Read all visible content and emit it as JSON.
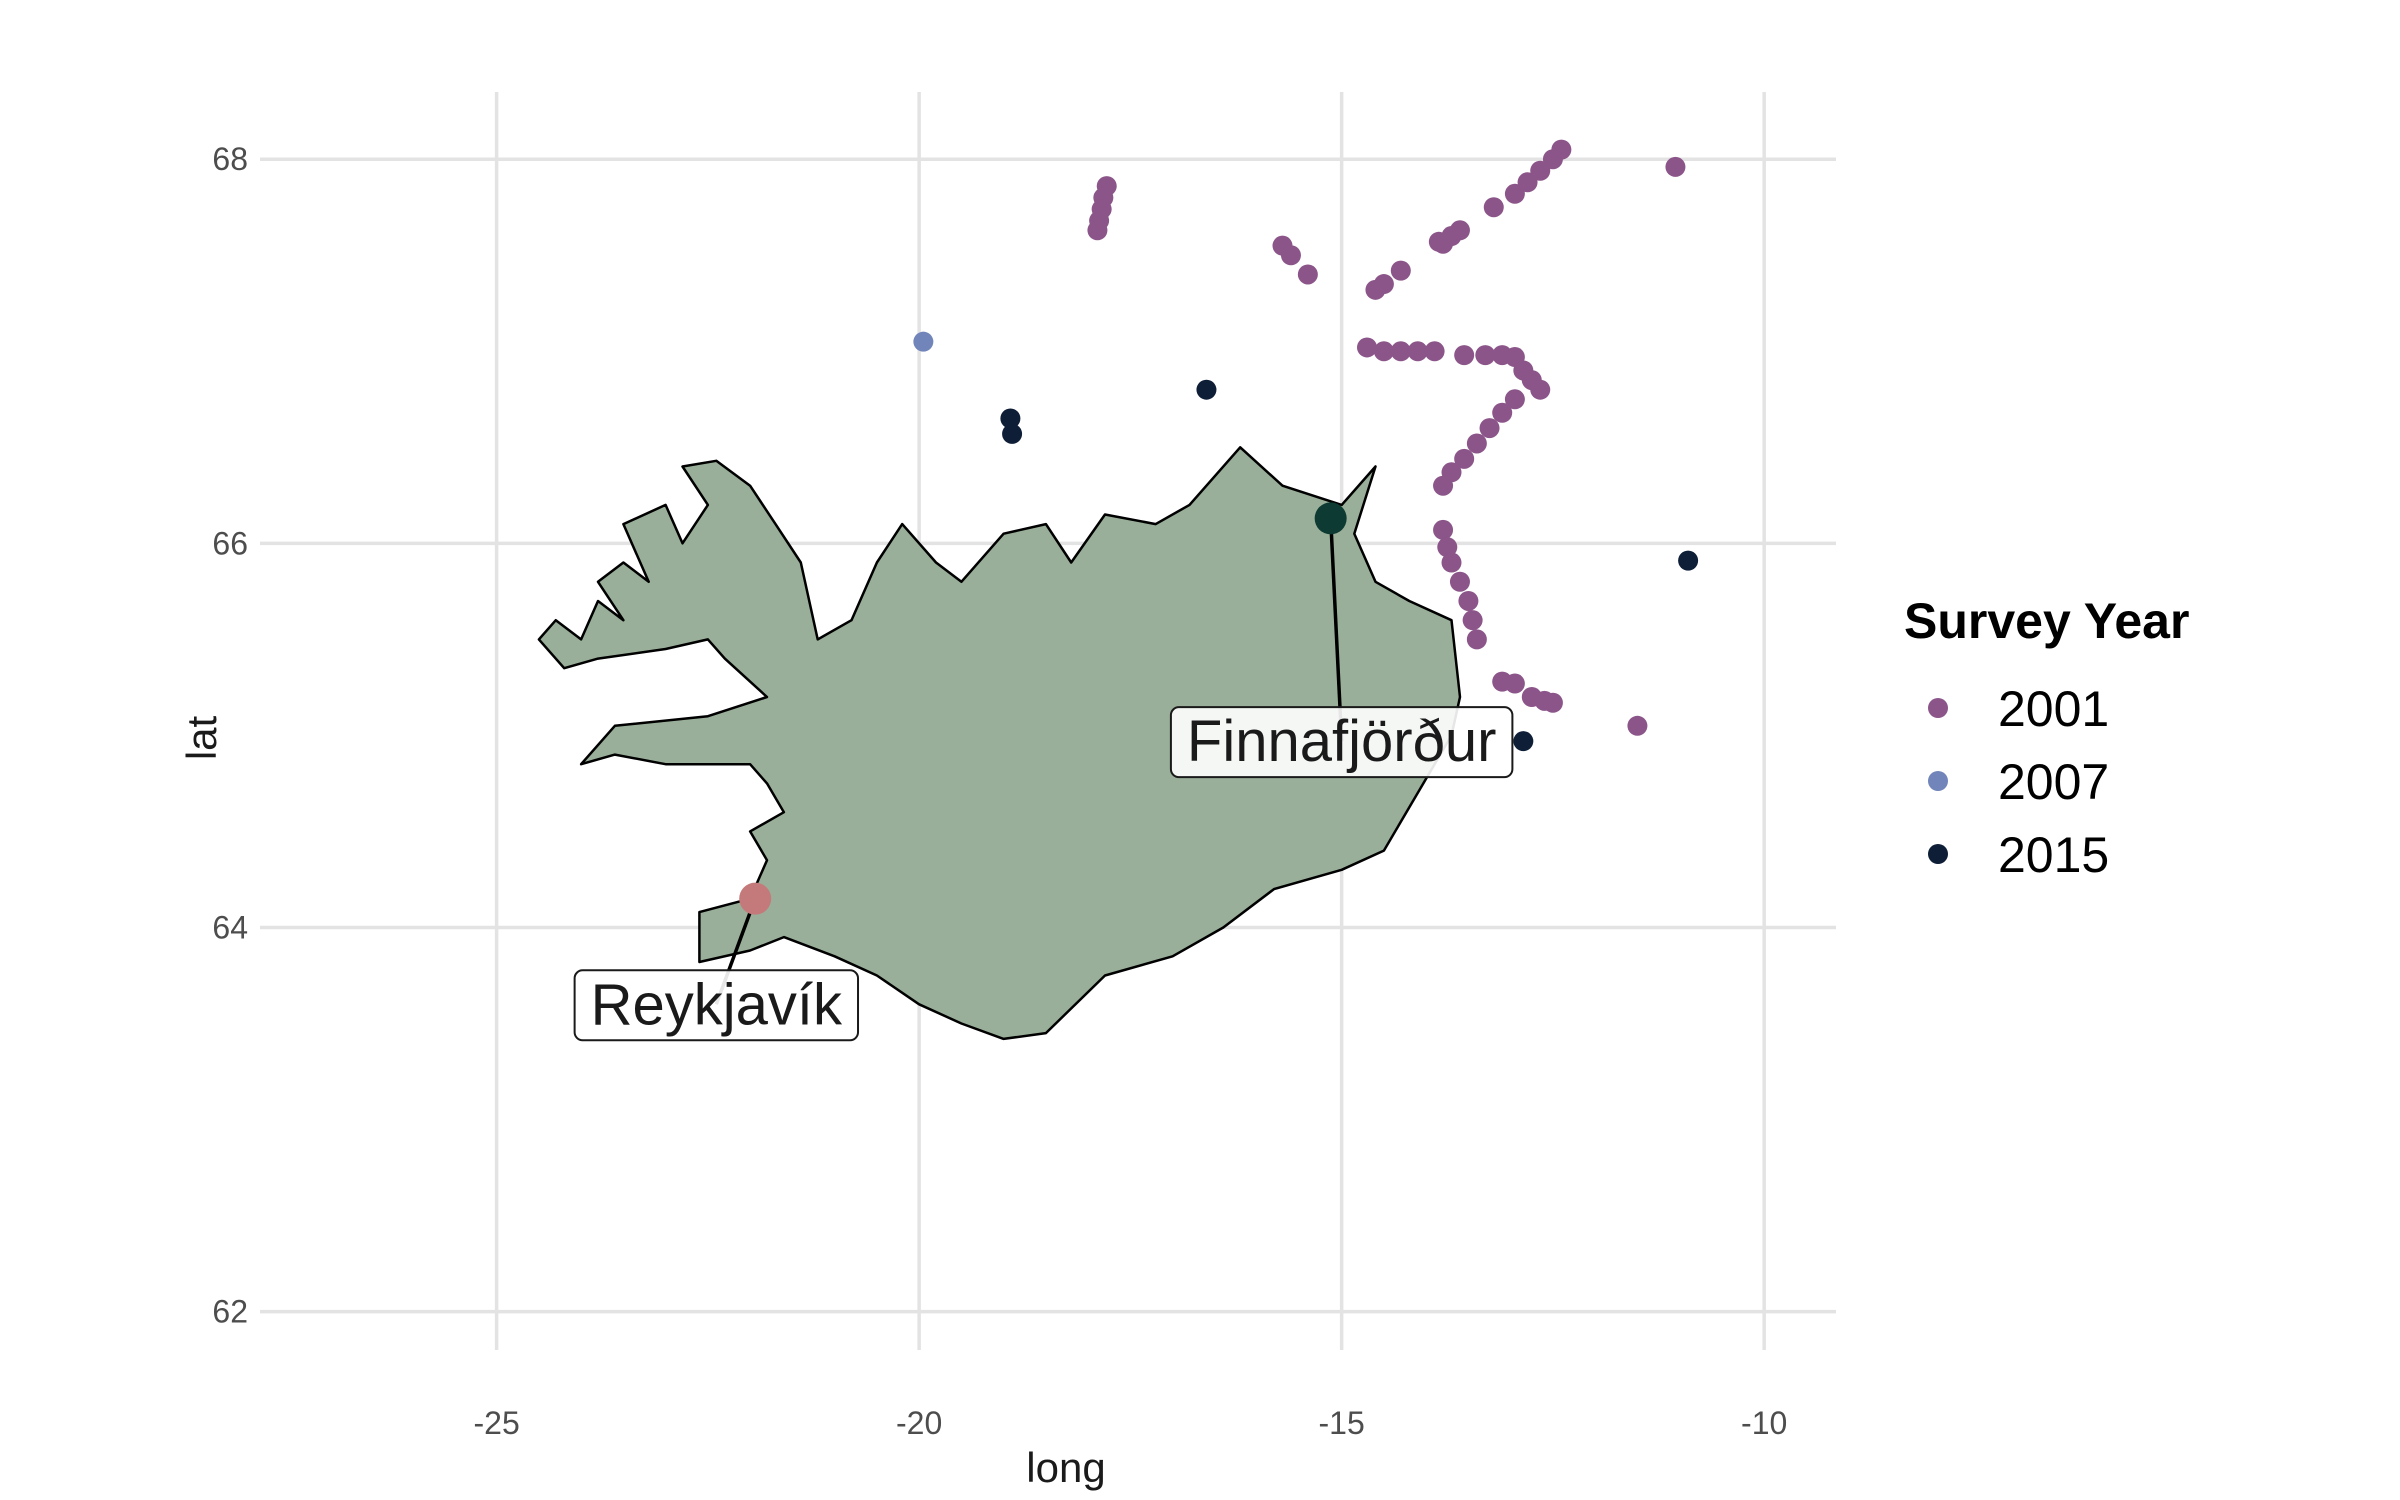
{
  "chart_data": {
    "type": "scatter",
    "title": "",
    "xlabel": "long",
    "ylabel": "lat",
    "xlim": [
      -27.8,
      -9.15
    ],
    "ylim": [
      61.8,
      68.35
    ],
    "x_ticks": [
      -25,
      -20,
      -15,
      -10
    ],
    "y_ticks": [
      62,
      64,
      66,
      68
    ],
    "x_tick_labels": [
      "-25",
      "-20",
      "-15",
      "-10"
    ],
    "y_tick_labels": [
      "62",
      "64",
      "66",
      "68"
    ],
    "grid": true,
    "legend": {
      "title": "Survey Year",
      "placement": "right",
      "entries": [
        "2001",
        "2007",
        "2015"
      ]
    },
    "land": {
      "name": "Iceland",
      "fill": "#99af99",
      "stroke": "#000000",
      "outline_lonlat": [
        [
          -24.5,
          65.5
        ],
        [
          -24.3,
          65.6
        ],
        [
          -24.0,
          65.5
        ],
        [
          -23.8,
          65.7
        ],
        [
          -23.5,
          65.6
        ],
        [
          -23.8,
          65.8
        ],
        [
          -23.5,
          65.9
        ],
        [
          -23.2,
          65.8
        ],
        [
          -23.5,
          66.1
        ],
        [
          -23.0,
          66.2
        ],
        [
          -22.8,
          66.0
        ],
        [
          -22.5,
          66.2
        ],
        [
          -22.8,
          66.4
        ],
        [
          -22.4,
          66.43
        ],
        [
          -22.0,
          66.3
        ],
        [
          -21.7,
          66.1
        ],
        [
          -21.4,
          65.9
        ],
        [
          -21.2,
          65.5
        ],
        [
          -20.8,
          65.6
        ],
        [
          -20.5,
          65.9
        ],
        [
          -20.2,
          66.1
        ],
        [
          -19.8,
          65.9
        ],
        [
          -19.5,
          65.8
        ],
        [
          -19.0,
          66.05
        ],
        [
          -18.5,
          66.1
        ],
        [
          -18.2,
          65.9
        ],
        [
          -17.8,
          66.15
        ],
        [
          -17.2,
          66.1
        ],
        [
          -16.8,
          66.2
        ],
        [
          -16.2,
          66.5
        ],
        [
          -15.7,
          66.3
        ],
        [
          -15.0,
          66.2
        ],
        [
          -14.6,
          66.4
        ],
        [
          -14.85,
          66.05
        ],
        [
          -14.6,
          65.8
        ],
        [
          -14.2,
          65.7
        ],
        [
          -13.7,
          65.6
        ],
        [
          -13.6,
          65.2
        ],
        [
          -13.7,
          65.0
        ],
        [
          -14.1,
          64.7
        ],
        [
          -14.5,
          64.4
        ],
        [
          -15.0,
          64.3
        ],
        [
          -15.8,
          64.2
        ],
        [
          -16.4,
          64.0
        ],
        [
          -17.0,
          63.85
        ],
        [
          -17.8,
          63.75
        ],
        [
          -18.5,
          63.45
        ],
        [
          -19.0,
          63.42
        ],
        [
          -19.5,
          63.5
        ],
        [
          -20.0,
          63.6
        ],
        [
          -20.5,
          63.75
        ],
        [
          -21.0,
          63.85
        ],
        [
          -21.6,
          63.95
        ],
        [
          -22.0,
          63.88
        ],
        [
          -22.6,
          63.82
        ],
        [
          -22.6,
          64.08
        ],
        [
          -22.0,
          64.15
        ],
        [
          -21.8,
          64.35
        ],
        [
          -22.0,
          64.5
        ],
        [
          -21.6,
          64.6
        ],
        [
          -21.8,
          64.75
        ],
        [
          -22.0,
          64.85
        ],
        [
          -23.0,
          64.85
        ],
        [
          -23.6,
          64.9
        ],
        [
          -24.0,
          64.85
        ],
        [
          -23.6,
          65.05
        ],
        [
          -22.5,
          65.1
        ],
        [
          -21.8,
          65.2
        ],
        [
          -22.3,
          65.4
        ],
        [
          -22.5,
          65.5
        ],
        [
          -23.0,
          65.45
        ],
        [
          -23.8,
          65.4
        ],
        [
          -24.2,
          65.35
        ],
        [
          -24.5,
          65.5
        ]
      ]
    },
    "series": [
      {
        "name": "2001",
        "color": "#8b5589",
        "points": [
          [
            -17.78,
            67.86
          ],
          [
            -17.82,
            67.8
          ],
          [
            -17.84,
            67.74
          ],
          [
            -17.87,
            67.68
          ],
          [
            -17.89,
            67.63
          ],
          [
            -15.7,
            67.55
          ],
          [
            -15.6,
            67.5
          ],
          [
            -15.4,
            67.4
          ],
          [
            -14.6,
            67.32
          ],
          [
            -14.5,
            67.35
          ],
          [
            -14.3,
            67.42
          ],
          [
            -13.85,
            67.57
          ],
          [
            -13.8,
            67.56
          ],
          [
            -13.7,
            67.6
          ],
          [
            -13.6,
            67.63
          ],
          [
            -13.2,
            67.75
          ],
          [
            -12.95,
            67.82
          ],
          [
            -12.8,
            67.88
          ],
          [
            -12.65,
            67.94
          ],
          [
            -12.5,
            68.0
          ],
          [
            -12.4,
            68.05
          ],
          [
            -11.05,
            67.96
          ],
          [
            -14.7,
            67.02
          ],
          [
            -14.5,
            67.0
          ],
          [
            -14.3,
            67.0
          ],
          [
            -14.1,
            67.0
          ],
          [
            -13.9,
            67.0
          ],
          [
            -13.55,
            66.98
          ],
          [
            -13.3,
            66.98
          ],
          [
            -13.1,
            66.98
          ],
          [
            -12.95,
            66.97
          ],
          [
            -12.85,
            66.9
          ],
          [
            -12.75,
            66.85
          ],
          [
            -12.65,
            66.8
          ],
          [
            -12.95,
            66.75
          ],
          [
            -13.1,
            66.68
          ],
          [
            -13.25,
            66.6
          ],
          [
            -13.4,
            66.52
          ],
          [
            -13.55,
            66.44
          ],
          [
            -13.7,
            66.37
          ],
          [
            -13.8,
            66.3
          ],
          [
            -13.8,
            66.07
          ],
          [
            -13.75,
            65.98
          ],
          [
            -13.7,
            65.9
          ],
          [
            -13.6,
            65.8
          ],
          [
            -13.5,
            65.7
          ],
          [
            -13.45,
            65.6
          ],
          [
            -13.4,
            65.5
          ],
          [
            -13.1,
            65.28
          ],
          [
            -12.95,
            65.27
          ],
          [
            -12.75,
            65.2
          ],
          [
            -12.6,
            65.18
          ],
          [
            -12.5,
            65.17
          ],
          [
            -11.5,
            65.05
          ]
        ]
      },
      {
        "name": "2007",
        "color": "#7185ba",
        "points": [
          [
            -19.95,
            67.05
          ]
        ]
      },
      {
        "name": "2015",
        "color": "#0f1e37",
        "points": [
          [
            -18.92,
            66.65
          ],
          [
            -18.9,
            66.57
          ],
          [
            -16.6,
            66.8
          ],
          [
            -12.85,
            64.97
          ],
          [
            -10.9,
            65.91
          ]
        ]
      }
    ],
    "places": [
      {
        "name": "Reykjavík",
        "lon": -21.94,
        "lat": 64.15,
        "label_lon": -22.4,
        "label_lat": 63.6,
        "color": "#c47a7a"
      },
      {
        "name": "Finnafjörður",
        "lon": -15.13,
        "lat": 66.13,
        "label_lon": -15.0,
        "label_lat": 64.97,
        "color": "#0d3a33"
      }
    ]
  }
}
